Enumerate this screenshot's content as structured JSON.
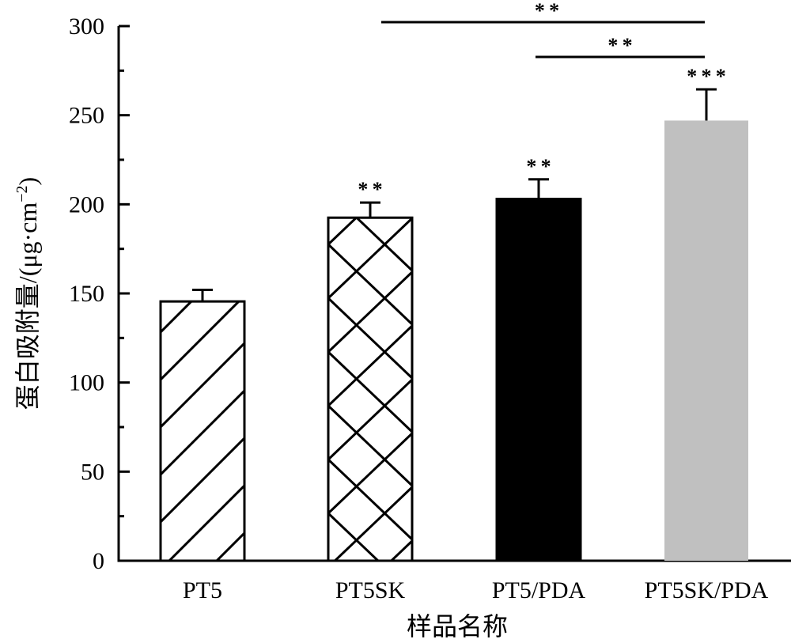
{
  "chart_data": {
    "type": "bar",
    "title": "",
    "xlabel": "样品名称",
    "ylabel": "蛋白吸附量/(μg·cm⁻²)",
    "ylim": [
      0,
      300
    ],
    "yticks": [
      0,
      50,
      100,
      150,
      200,
      250,
      300
    ],
    "ytick_labels": [
      "0",
      "50",
      "100",
      "150",
      "200",
      "250",
      "300"
    ],
    "minor_ticks": true,
    "grid": false,
    "legend": "none",
    "categories": [
      "PT5",
      "PT5SK",
      "PT5/PDA",
      "PT5SK/PDA"
    ],
    "values": [
      145.5,
      192.5,
      203,
      247
    ],
    "errors": [
      6.5,
      8.5,
      11,
      17.5
    ],
    "bar_styles": [
      {
        "fill": "hatch-diagonal",
        "color": "#ffffff",
        "stroke": "#000000"
      },
      {
        "fill": "hatch-crosshatch",
        "color": "#ffffff",
        "stroke": "#000000"
      },
      {
        "fill": "solid",
        "color": "#000000",
        "stroke": "#000000"
      },
      {
        "fill": "solid",
        "color": "#c0c0c0",
        "stroke": "none"
      }
    ],
    "bar_annotations": [
      "",
      "**",
      "**",
      "***"
    ],
    "brackets": [
      {
        "from": "PT5SK",
        "to": "PT5SK/PDA",
        "label": "**"
      },
      {
        "from": "PT5/PDA",
        "to": "PT5SK/PDA",
        "label": "**"
      }
    ]
  }
}
